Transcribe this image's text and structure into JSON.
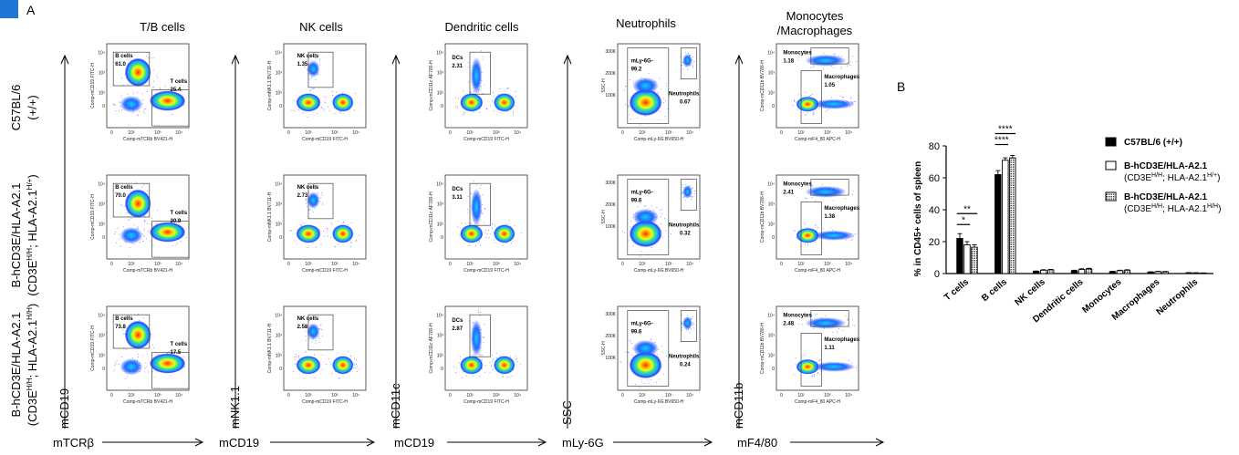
{
  "panel_letters": [
    "A",
    "B"
  ],
  "accent_color": "#1f77d4",
  "column_titles": [
    "T/B cells",
    "NK cells",
    "Dendritic cells",
    "Neutrophils",
    "Monocytes",
    "/Macrophages"
  ],
  "row_labels": [
    {
      "line1": "C57BL/6",
      "line2": "(+/+)"
    },
    {
      "line1": "B-hCD3E/HLA-A2.1",
      "line2": "(CD3E",
      "sup1": "H/H",
      "mid": "; HLA-A2.1",
      "sup2": "H/+",
      "end": ")"
    },
    {
      "line1": "B-hCD3E/HLA-A2.1",
      "line2": "(CD3E",
      "sup1": "H/H",
      "mid": "; HLA-A2.1",
      "sup2": "H/H",
      "end": ")"
    }
  ],
  "x_markers": [
    "mTCRβ",
    "mCD19",
    "mCD19",
    "mLy-6G",
    "mF4/80"
  ],
  "y_markers": [
    "mCD19",
    "mNK1.1",
    "mCD11c",
    "SSC",
    "mCD11b"
  ],
  "plot_axis": {
    "col0": {
      "x": "Comp-mTCRb BV421-H",
      "y": "Comp-mCD19 FITC-H"
    },
    "col1": {
      "x": "Comp-mCD19 FITC-H",
      "y": "Comp-mNK1.1 BV711-H"
    },
    "col2": {
      "x": "Comp-mCD19 FITC-H",
      "y": "Comp-mCD11c AF700-H"
    },
    "col3": {
      "x": "Comp-mLy-6G BV650-H",
      "y": "SSC-H"
    },
    "col4": {
      "x": "Comp-mF4_80 APC-H",
      "y": "Comp-mCD11b BV786-H"
    }
  },
  "tick_labels": {
    "log": [
      "10⁴",
      "10³",
      "10²",
      "0",
      "10²",
      "10³",
      "10⁴"
    ],
    "ssc": [
      "300K",
      "200K",
      "100K"
    ]
  },
  "gates": [
    [
      [
        {
          "label": "B cells",
          "value": "61.0"
        },
        {
          "label": "T cells",
          "value": "25.4"
        }
      ],
      [
        {
          "label": "NK cells",
          "value": "1.35"
        }
      ],
      [
        {
          "label": "DCs",
          "value": "2.31"
        }
      ],
      [
        {
          "label": "mLy-6G-",
          "value": "99.2"
        },
        {
          "label": "Neutrophils",
          "value": "0.67"
        }
      ],
      [
        {
          "label": "Monocytes",
          "value": "1.18"
        },
        {
          "label": "Macrophages",
          "value": "1.05"
        }
      ]
    ],
    [
      [
        {
          "label": "B cells",
          "value": "70.0"
        },
        {
          "label": "T cells",
          "value": "20.9"
        }
      ],
      [
        {
          "label": "NK cells",
          "value": "2.73"
        }
      ],
      [
        {
          "label": "DCs",
          "value": "3.11"
        }
      ],
      [
        {
          "label": "mLy-6G-",
          "value": "99.6"
        },
        {
          "label": "Neutrophils",
          "value": "0.32"
        }
      ],
      [
        {
          "label": "Monocytes",
          "value": "2.41"
        },
        {
          "label": "Macrophages",
          "value": "1.38"
        }
      ]
    ],
    [
      [
        {
          "label": "B cells",
          "value": "73.8"
        },
        {
          "label": "T cells",
          "value": "17.5"
        }
      ],
      [
        {
          "label": "NK cells",
          "value": "2.58"
        }
      ],
      [
        {
          "label": "DCs",
          "value": "2.87"
        }
      ],
      [
        {
          "label": "mLy-6G-",
          "value": "99.6"
        },
        {
          "label": "Neutrophils",
          "value": "0.24"
        }
      ],
      [
        {
          "label": "Monocytes",
          "value": "2.48"
        },
        {
          "label": "Macrophages",
          "value": "1.11"
        }
      ]
    ]
  ],
  "chart_data": {
    "type": "bar",
    "ylabel": "% in CD45+ cells of spleen",
    "ylim": [
      0,
      80
    ],
    "yticks": [
      0,
      20,
      40,
      60,
      80
    ],
    "categories": [
      "T cells",
      "B cells",
      "NK cells",
      "Dendritic cells",
      "Monocytes",
      "Macrophages",
      "Neutrophils"
    ],
    "series": [
      {
        "legend1": "C57BL/6 (+/+)",
        "legend2": "",
        "values": [
          22,
          62,
          1.4,
          1.8,
          1.2,
          0.9,
          0.5
        ],
        "errors": [
          3,
          2.5,
          0.2,
          0.3,
          0.2,
          0.2,
          0.1
        ],
        "color": "#000000",
        "pattern": "solid"
      },
      {
        "legend1": "B-hCD3E/HLA-A2.1",
        "legend2a": "(CD3E",
        "legend2sup1": "H/H",
        "legend2b": "; HLA-A2.1",
        "legend2sup2": "H/+",
        "legend2c": ")",
        "values": [
          18,
          71,
          2.1,
          2.6,
          1.8,
          1.2,
          0.4
        ],
        "errors": [
          2,
          1.5,
          0.3,
          0.4,
          0.3,
          0.2,
          0.1
        ],
        "color": "#ffffff",
        "pattern": "open"
      },
      {
        "legend1": "B-hCD3E/HLA-A2.1",
        "legend2a": "(CD3E",
        "legend2sup1": "H/H",
        "legend2b": "; HLA-A2.1",
        "legend2sup2": "H/H",
        "legend2c": ")",
        "values": [
          16.5,
          72.5,
          2.3,
          2.9,
          2.1,
          1.1,
          0.3
        ],
        "errors": [
          1.5,
          1.5,
          0.3,
          0.4,
          0.3,
          0.2,
          0.1
        ],
        "color": "#555555",
        "pattern": "dots"
      }
    ],
    "significance": [
      {
        "label": "**",
        "from": 0,
        "to": 2,
        "category": 0
      },
      {
        "label": "*",
        "from": 0,
        "to": 1,
        "category": 0
      },
      {
        "label": "****",
        "from": 0,
        "to": 2,
        "category": 1
      },
      {
        "label": "****",
        "from": 0,
        "to": 1,
        "category": 1
      }
    ]
  }
}
